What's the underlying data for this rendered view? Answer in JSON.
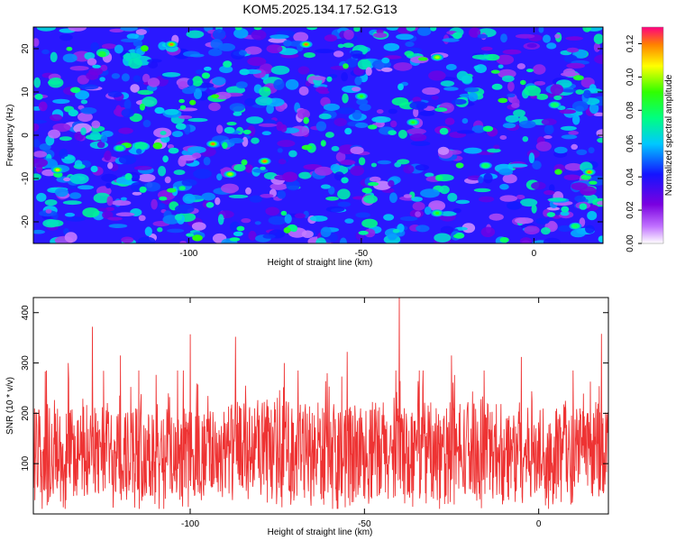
{
  "title": "KOM5.2025.134.17.52.G13",
  "chart_data": [
    {
      "type": "heatmap",
      "xlabel": "Height of straight line (km)",
      "ylabel": "Frequency (Hz)",
      "xlim": [
        -145,
        20
      ],
      "ylim": [
        -25,
        25
      ],
      "xticks": [
        -100,
        -50,
        0
      ],
      "yticks": [
        -20,
        -10,
        0,
        10,
        20
      ],
      "colorbar": {
        "label": "Normalized spectral amplitude",
        "range": [
          0.0,
          0.13
        ],
        "ticks": [
          "0.00",
          "0.02",
          "0.04",
          "0.06",
          "0.08",
          "0.10",
          "0.12"
        ]
      },
      "description_values": {
        "background_level": 0.03,
        "peak_level": 0.12,
        "hotspots": [
          {
            "x": -105,
            "y": 21,
            "v": 0.12
          },
          {
            "x": -66,
            "y": 21,
            "v": 0.12
          },
          {
            "x": -93,
            "y": -2,
            "v": 0.12
          },
          {
            "x": -78,
            "y": -6,
            "v": 0.12
          },
          {
            "x": -138,
            "y": -8,
            "v": 0.11
          },
          {
            "x": 16,
            "y": -8.5,
            "v": 0.12
          },
          {
            "x": -28,
            "y": 18,
            "v": 0.1
          },
          {
            "x": -35,
            "y": 3,
            "v": 0.09
          },
          {
            "x": -88,
            "y": -9,
            "v": 0.1
          },
          {
            "x": -50,
            "y": 9,
            "v": 0.09
          },
          {
            "x": -28,
            "y": -18,
            "v": 0.09
          },
          {
            "x": 6,
            "y": 7,
            "v": 0.08
          },
          {
            "x": -120,
            "y": -3,
            "v": 0.08
          },
          {
            "x": -14,
            "y": -7,
            "v": 0.08
          },
          {
            "x": 12,
            "y": -21,
            "v": 0.08
          }
        ]
      }
    },
    {
      "type": "line",
      "xlabel": "Height of straight line (km)",
      "ylabel": "SNR (10 * v/v)",
      "xlim": [
        -145,
        20
      ],
      "ylim": [
        0,
        430
      ],
      "xticks": [
        -100,
        -50,
        0
      ],
      "yticks": [
        100,
        200,
        300,
        400
      ],
      "color": "#ee3333",
      "series_stats": {
        "baseline": 120,
        "noise_spread": 110,
        "points": 1500
      },
      "peaks": [
        {
          "x": -40,
          "y": 430
        },
        {
          "x": -128,
          "y": 372
        },
        {
          "x": -100,
          "y": 357
        },
        {
          "x": -87,
          "y": 352
        },
        {
          "x": 18,
          "y": 358
        },
        {
          "x": -55,
          "y": 322
        },
        {
          "x": -120,
          "y": 315
        },
        {
          "x": -25,
          "y": 315
        },
        {
          "x": -5,
          "y": 312
        },
        {
          "x": -73,
          "y": 300
        },
        {
          "x": -135,
          "y": 300
        }
      ]
    }
  ]
}
